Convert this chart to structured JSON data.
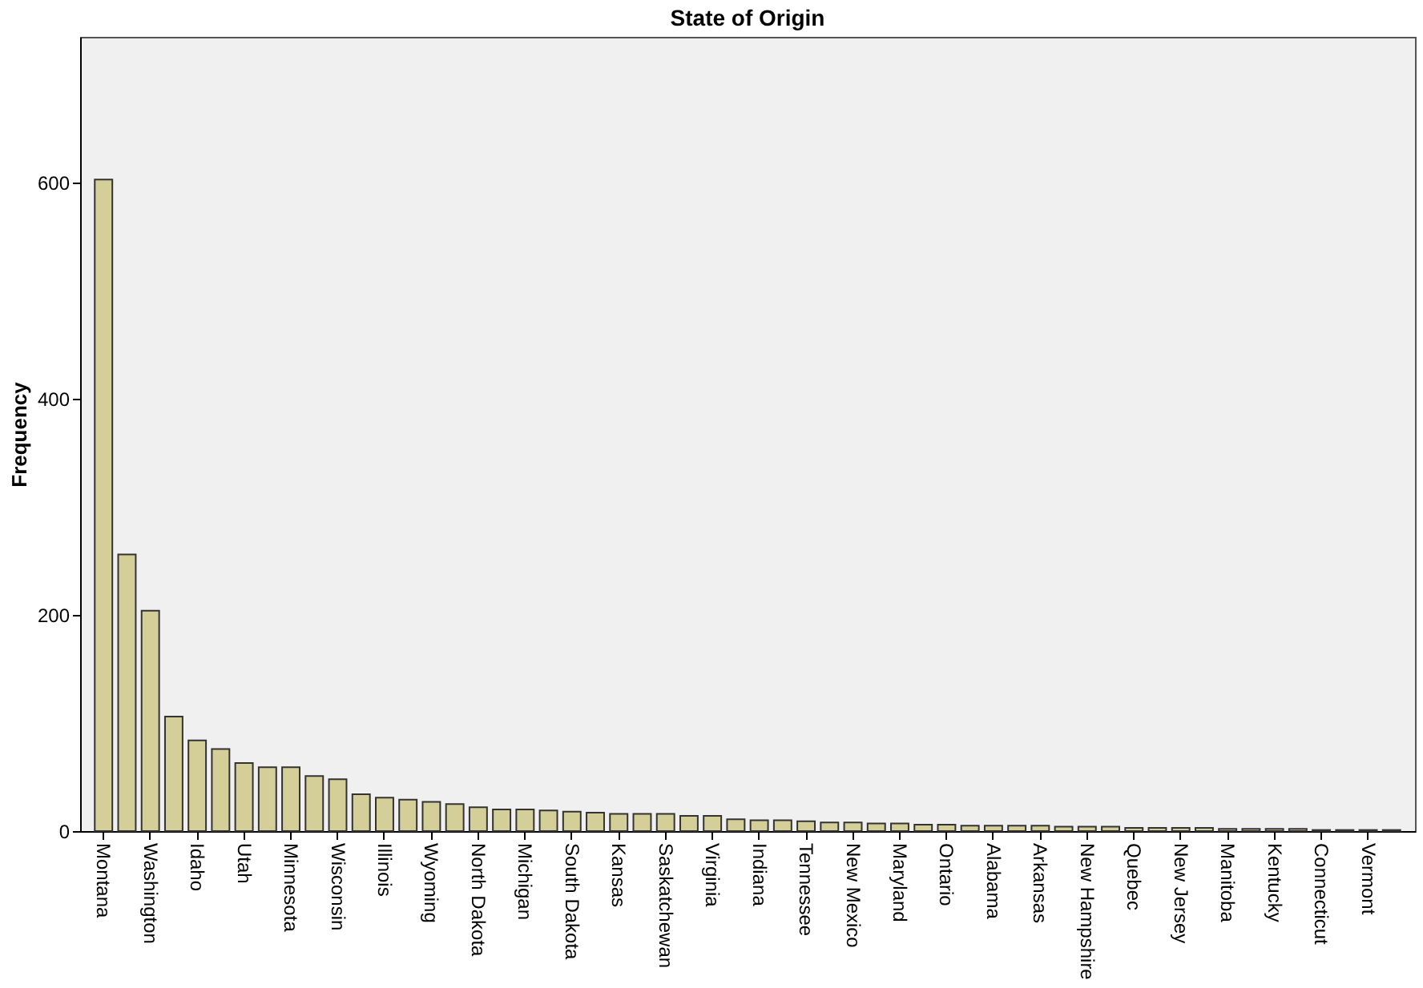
{
  "chart_data": {
    "type": "bar",
    "title": "State of Origin",
    "ylabel": "Frequency",
    "categories": [
      "Montana",
      null,
      "Washington",
      null,
      "Idaho",
      null,
      "Utah",
      null,
      "Minnesota",
      null,
      "Wisconsin",
      null,
      "Illinois",
      null,
      "Wyoming",
      null,
      "North Dakota",
      null,
      "Michigan",
      null,
      "South Dakota",
      null,
      "Kansas",
      null,
      "Saskatchewan",
      null,
      "Virginia",
      null,
      "Indiana",
      null,
      "Tennessee",
      null,
      "New Mexico",
      null,
      "Maryland",
      null,
      "Ontario",
      null,
      "Alabama",
      null,
      "Arkansas",
      null,
      "New Hampshire",
      null,
      "Quebec",
      null,
      "New Jersey",
      null,
      "Manitoba",
      null,
      "Kentucky",
      null,
      "Connecticut",
      null,
      "Vermont",
      null
    ],
    "values": [
      603,
      256,
      204,
      106,
      84,
      76,
      63,
      59,
      59,
      51,
      48,
      34,
      31,
      29,
      27,
      25,
      22,
      20,
      20,
      19,
      18,
      17,
      16,
      16,
      16,
      14,
      14,
      11,
      10,
      10,
      9,
      8,
      8,
      7,
      7,
      6,
      6,
      5,
      5,
      5,
      5,
      4,
      4,
      4,
      3,
      3,
      3,
      3,
      2,
      2,
      2,
      2,
      1,
      1,
      1,
      1
    ],
    "color": "#d4cf98",
    "ylim": [
      0,
      735
    ],
    "yticks": [
      0,
      200,
      400,
      600
    ],
    "grid": false
  }
}
